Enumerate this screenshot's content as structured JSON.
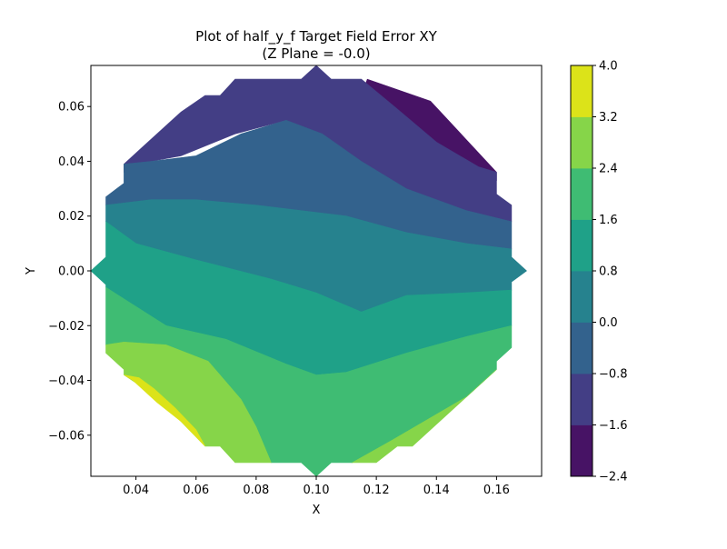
{
  "chart_data": {
    "type": "contourf",
    "title": "Plot of half_y_f Target Field Error XY",
    "subtitle": "(Z Plane = -0.0)",
    "xlabel": "X",
    "ylabel": "Y",
    "xlim": [
      0.025,
      0.175
    ],
    "ylim": [
      -0.075,
      0.075
    ],
    "x_ticks": [
      "0.04",
      "0.06",
      "0.08",
      "0.10",
      "0.12",
      "0.14",
      "0.16"
    ],
    "y_ticks": [
      "0.06",
      "0.04",
      "0.02",
      "0.00",
      "−0.02",
      "−0.04",
      "−0.06"
    ],
    "x_tick_values": [
      0.04,
      0.06,
      0.08,
      0.1,
      0.12,
      0.14,
      0.16
    ],
    "y_tick_values": [
      0.06,
      0.04,
      0.02,
      0.0,
      -0.02,
      -0.04,
      -0.06
    ],
    "grid": false,
    "colormap": "viridis",
    "colorbar": {
      "levels": [
        -2.4,
        -1.6,
        -0.8,
        0.0,
        0.8,
        1.6,
        2.4,
        3.2,
        4.0
      ],
      "tick_labels": [
        "−2.4",
        "−1.6",
        "−0.8",
        "0.0",
        "0.8",
        "1.6",
        "2.4",
        "3.2",
        "4.0"
      ],
      "colors": [
        "#471365",
        "#433e85",
        "#33628d",
        "#26828e",
        "#1fa188",
        "#3fbc73",
        "#86d549",
        "#dce319"
      ]
    },
    "bands": [
      {
        "range": [
          -2.4,
          -1.6
        ],
        "color": "#471365",
        "outline": [
          [
            0.117,
            0.07
          ],
          [
            0.138,
            0.062
          ],
          [
            0.16,
            0.036
          ],
          [
            0.16,
            0.033
          ],
          [
            0.15,
            0.037
          ],
          [
            0.132,
            0.049
          ],
          [
            0.115,
            0.064
          ]
        ]
      },
      {
        "range": [
          -1.6,
          -0.8
        ],
        "color": "#433e85",
        "outline": [
          [
            0.036,
            0.036
          ],
          [
            0.036,
            0.039
          ],
          [
            0.042,
            0.045
          ],
          [
            0.055,
            0.058
          ],
          [
            0.063,
            0.064
          ],
          [
            0.068,
            0.064
          ],
          [
            0.073,
            0.07
          ],
          [
            0.095,
            0.07
          ],
          [
            0.1,
            0.075
          ],
          [
            0.105,
            0.07
          ],
          [
            0.115,
            0.07
          ],
          [
            0.126,
            0.06
          ],
          [
            0.14,
            0.047
          ],
          [
            0.154,
            0.038
          ],
          [
            0.16,
            0.036
          ],
          [
            0.16,
            0.028
          ],
          [
            0.165,
            0.024
          ],
          [
            0.165,
            0.018
          ],
          [
            0.15,
            0.022
          ],
          [
            0.125,
            0.03
          ],
          [
            0.105,
            0.045
          ],
          [
            0.09,
            0.055
          ],
          [
            0.073,
            0.05
          ],
          [
            0.055,
            0.042
          ],
          [
            0.045,
            0.04
          ]
        ]
      },
      {
        "range": [
          -0.8,
          0.0
        ],
        "color": "#33628d",
        "outline": [
          [
            0.03,
            0.024
          ],
          [
            0.03,
            0.027
          ],
          [
            0.036,
            0.032
          ],
          [
            0.036,
            0.039
          ],
          [
            0.045,
            0.04
          ],
          [
            0.06,
            0.042
          ],
          [
            0.075,
            0.05
          ],
          [
            0.09,
            0.055
          ],
          [
            0.102,
            0.05
          ],
          [
            0.115,
            0.04
          ],
          [
            0.13,
            0.03
          ],
          [
            0.15,
            0.022
          ],
          [
            0.165,
            0.018
          ],
          [
            0.165,
            0.008
          ],
          [
            0.15,
            0.01
          ],
          [
            0.13,
            0.014
          ],
          [
            0.11,
            0.02
          ],
          [
            0.095,
            0.022
          ],
          [
            0.08,
            0.024
          ],
          [
            0.06,
            0.026
          ],
          [
            0.045,
            0.026
          ]
        ]
      },
      {
        "range": [
          0.0,
          0.8
        ],
        "color": "#26828e",
        "outline": [
          [
            0.03,
            0.018
          ],
          [
            0.03,
            0.024
          ],
          [
            0.045,
            0.026
          ],
          [
            0.06,
            0.026
          ],
          [
            0.08,
            0.024
          ],
          [
            0.095,
            0.022
          ],
          [
            0.11,
            0.02
          ],
          [
            0.13,
            0.014
          ],
          [
            0.15,
            0.01
          ],
          [
            0.165,
            0.008
          ],
          [
            0.165,
            0.005
          ],
          [
            0.17,
            0.0
          ],
          [
            0.165,
            -0.004
          ],
          [
            0.165,
            -0.007
          ],
          [
            0.15,
            -0.008
          ],
          [
            0.13,
            -0.009
          ],
          [
            0.115,
            -0.015
          ],
          [
            0.1,
            -0.008
          ],
          [
            0.085,
            -0.003
          ],
          [
            0.06,
            0.004
          ],
          [
            0.04,
            0.01
          ]
        ]
      },
      {
        "range": [
          0.8,
          1.6
        ],
        "color": "#1fa188",
        "outline": [
          [
            0.025,
            0.0
          ],
          [
            0.03,
            0.005
          ],
          [
            0.03,
            0.018
          ],
          [
            0.04,
            0.01
          ],
          [
            0.06,
            0.004
          ],
          [
            0.085,
            -0.003
          ],
          [
            0.1,
            -0.008
          ],
          [
            0.115,
            -0.015
          ],
          [
            0.13,
            -0.009
          ],
          [
            0.15,
            -0.008
          ],
          [
            0.165,
            -0.007
          ],
          [
            0.165,
            -0.02
          ],
          [
            0.15,
            -0.024
          ],
          [
            0.13,
            -0.03
          ],
          [
            0.11,
            -0.037
          ],
          [
            0.1,
            -0.038
          ],
          [
            0.09,
            -0.034
          ],
          [
            0.07,
            -0.025
          ],
          [
            0.05,
            -0.02
          ],
          [
            0.03,
            -0.006
          ],
          [
            0.03,
            -0.005
          ]
        ]
      },
      {
        "range": [
          1.6,
          2.4
        ],
        "color": "#3fbc73",
        "outline": [
          [
            0.03,
            -0.006
          ],
          [
            0.03,
            -0.027
          ],
          [
            0.036,
            -0.026
          ],
          [
            0.05,
            -0.027
          ],
          [
            0.064,
            -0.033
          ],
          [
            0.075,
            -0.047
          ],
          [
            0.08,
            -0.057
          ],
          [
            0.085,
            -0.07
          ],
          [
            0.095,
            -0.07
          ],
          [
            0.1,
            -0.075
          ],
          [
            0.105,
            -0.07
          ],
          [
            0.112,
            -0.07
          ],
          [
            0.125,
            -0.062
          ],
          [
            0.15,
            -0.046
          ],
          [
            0.16,
            -0.036
          ],
          [
            0.16,
            -0.033
          ],
          [
            0.165,
            -0.028
          ],
          [
            0.165,
            -0.02
          ],
          [
            0.15,
            -0.024
          ],
          [
            0.13,
            -0.03
          ],
          [
            0.11,
            -0.037
          ],
          [
            0.1,
            -0.038
          ],
          [
            0.09,
            -0.034
          ],
          [
            0.07,
            -0.025
          ],
          [
            0.05,
            -0.02
          ]
        ]
      },
      {
        "range": [
          2.4,
          3.2
        ],
        "color": "#86d549",
        "outline": [
          [
            0.03,
            -0.027
          ],
          [
            0.03,
            -0.03
          ],
          [
            0.036,
            -0.036
          ],
          [
            0.036,
            -0.038
          ],
          [
            0.047,
            -0.046
          ],
          [
            0.055,
            -0.055
          ],
          [
            0.063,
            -0.064
          ],
          [
            0.068,
            -0.064
          ],
          [
            0.073,
            -0.07
          ],
          [
            0.085,
            -0.07
          ],
          [
            0.08,
            -0.057
          ],
          [
            0.075,
            -0.047
          ],
          [
            0.064,
            -0.033
          ],
          [
            0.05,
            -0.027
          ],
          [
            0.036,
            -0.026
          ]
        ]
      },
      {
        "range": [
          3.2,
          4.0
        ],
        "color": "#dce319",
        "outline": [
          [
            0.036,
            -0.038
          ],
          [
            0.039,
            -0.04
          ],
          [
            0.047,
            -0.048
          ],
          [
            0.055,
            -0.055
          ],
          [
            0.063,
            -0.064
          ],
          [
            0.06,
            -0.058
          ],
          [
            0.053,
            -0.05
          ],
          [
            0.046,
            -0.043
          ],
          [
            0.041,
            -0.039
          ]
        ]
      },
      {
        "range": [
          2.4,
          3.2
        ],
        "color": "#86d549",
        "outline": [
          [
            0.112,
            -0.07
          ],
          [
            0.12,
            -0.07
          ],
          [
            0.127,
            -0.064
          ],
          [
            0.132,
            -0.064
          ],
          [
            0.16,
            -0.036
          ],
          [
            0.15,
            -0.046
          ],
          [
            0.125,
            -0.062
          ]
        ]
      }
    ]
  }
}
